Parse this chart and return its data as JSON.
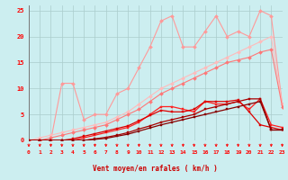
{
  "x": [
    0,
    1,
    2,
    3,
    4,
    5,
    6,
    7,
    8,
    9,
    10,
    11,
    12,
    13,
    14,
    15,
    16,
    17,
    18,
    19,
    20,
    21,
    22,
    23
  ],
  "series": [
    {
      "name": "light_pink_jagged",
      "color": "#ff9999",
      "lw": 0.8,
      "marker": "D",
      "markersize": 2.0,
      "y": [
        0,
        0,
        0,
        11,
        11,
        4,
        5,
        5,
        9,
        10,
        14,
        18,
        23,
        24,
        18,
        18,
        21,
        24,
        20,
        21,
        20,
        25,
        24,
        7
      ]
    },
    {
      "name": "light_pink_linear",
      "color": "#ffbbbb",
      "lw": 0.8,
      "marker": "D",
      "markersize": 2.0,
      "y": [
        0,
        0.5,
        1,
        1.5,
        2,
        2.5,
        3,
        3.5,
        4.5,
        5.5,
        7,
        8.5,
        10,
        11,
        12,
        13,
        14,
        15,
        16,
        17,
        18,
        19,
        20,
        7
      ]
    },
    {
      "name": "medium_pink_linear",
      "color": "#ff7777",
      "lw": 0.8,
      "marker": "D",
      "markersize": 2.0,
      "y": [
        0,
        0,
        0.5,
        1,
        1.5,
        2,
        2.5,
        3,
        4,
        5,
        6,
        7.5,
        9,
        10,
        11,
        12,
        13,
        14,
        15,
        15.5,
        16,
        17,
        17.5,
        6.5
      ]
    },
    {
      "name": "red_line1",
      "color": "#ff2222",
      "lw": 0.9,
      "marker": "s",
      "markersize": 2.0,
      "y": [
        0,
        0,
        0,
        0,
        0,
        0.5,
        1,
        1.5,
        2,
        2.5,
        3.5,
        5,
        6.5,
        6.5,
        6,
        5.5,
        7.5,
        7,
        7,
        7.5,
        6,
        8,
        3,
        2.5
      ]
    },
    {
      "name": "red_line2",
      "color": "#dd0000",
      "lw": 0.9,
      "marker": "s",
      "markersize": 2.0,
      "y": [
        0,
        0,
        0,
        0,
        0.3,
        0.8,
        1.3,
        1.8,
        2.3,
        2.8,
        3.8,
        4.8,
        5.8,
        5.5,
        5.5,
        6,
        7.5,
        7.5,
        7.5,
        7.8,
        5.5,
        3,
        2.5,
        2
      ]
    },
    {
      "name": "dark_red_line1",
      "color": "#aa0000",
      "lw": 0.9,
      "marker": "s",
      "markersize": 2.0,
      "y": [
        0,
        0,
        0,
        0,
        0,
        0,
        0.3,
        0.6,
        1,
        1.5,
        2.2,
        2.8,
        3.5,
        4,
        4.5,
        5,
        6,
        6.5,
        7,
        7.5,
        8,
        8,
        2,
        2
      ]
    },
    {
      "name": "dark_red_line2",
      "color": "#880000",
      "lw": 0.9,
      "marker": "s",
      "markersize": 2.0,
      "y": [
        0,
        0,
        0,
        0,
        0,
        0,
        0.2,
        0.4,
        0.8,
        1.2,
        1.8,
        2.4,
        3,
        3.5,
        4,
        4.5,
        5,
        5.5,
        6,
        6.5,
        7,
        7.5,
        2,
        2
      ]
    }
  ],
  "xlabel": "Vent moyen/en rafales ( km/h )",
  "xlim_min": 0,
  "xlim_max": 23,
  "ylim_min": 0,
  "ylim_max": 26,
  "yticks": [
    0,
    5,
    10,
    15,
    20,
    25
  ],
  "xticks": [
    0,
    1,
    2,
    3,
    4,
    5,
    6,
    7,
    8,
    9,
    10,
    11,
    12,
    13,
    14,
    15,
    16,
    17,
    18,
    19,
    20,
    21,
    22,
    23
  ],
  "bg_color": "#cceef0",
  "grid_color": "#aacccc",
  "tick_color": "#ff0000",
  "label_color": "#cc0000"
}
